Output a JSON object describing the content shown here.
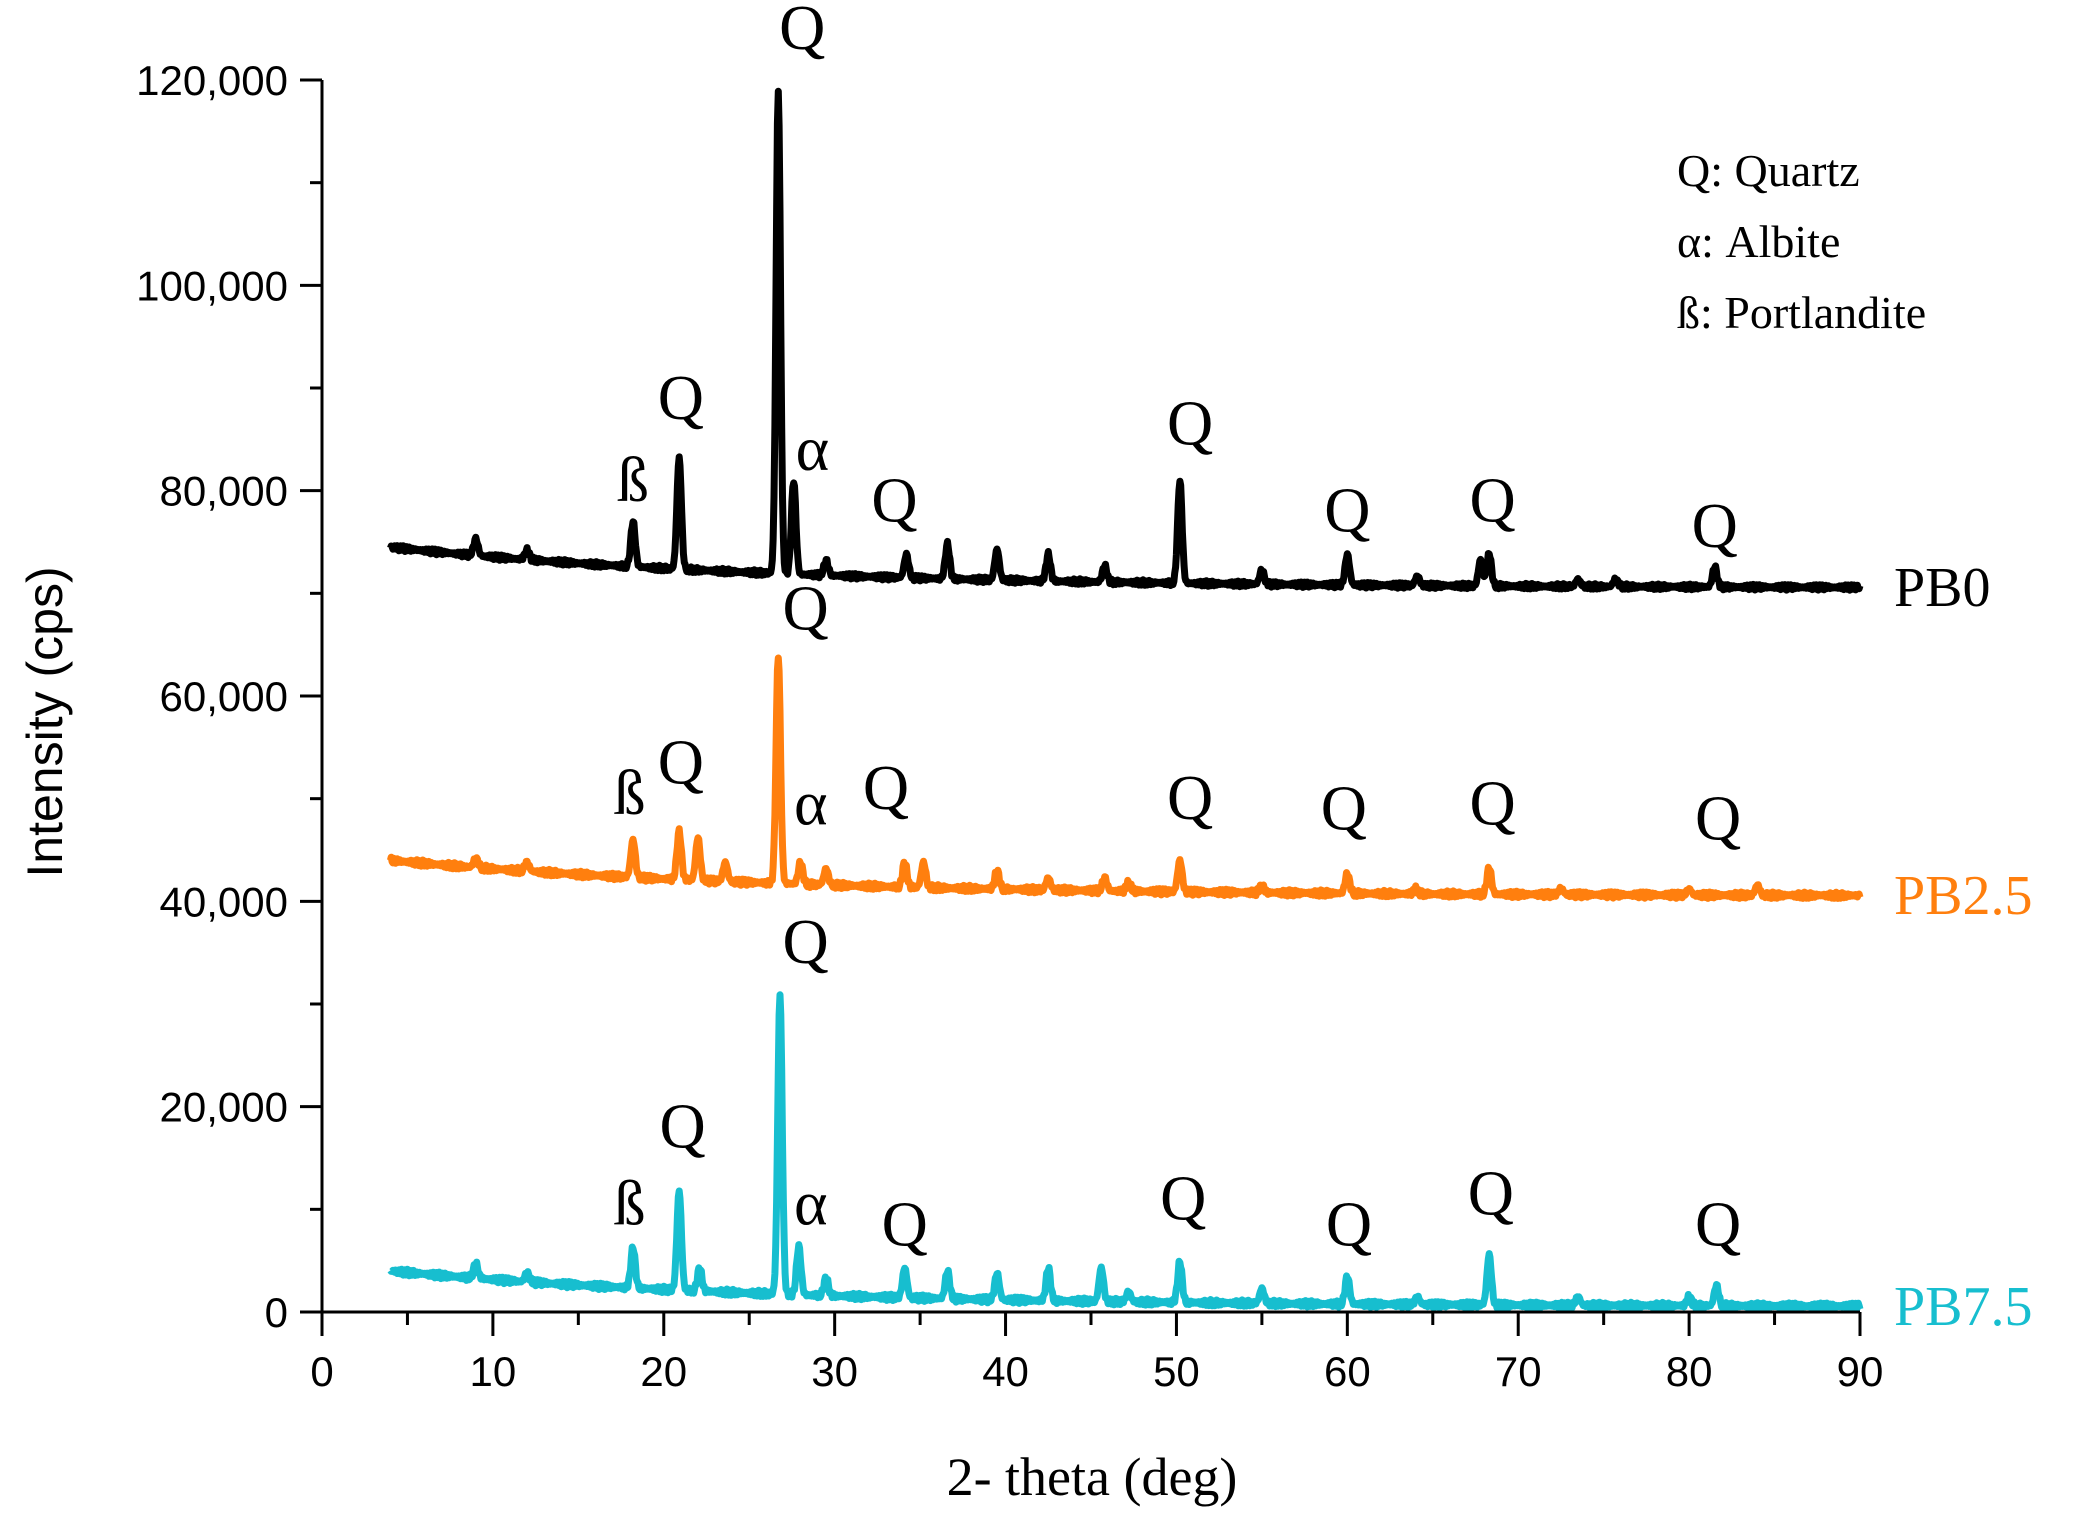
{
  "chart_data": {
    "type": "line",
    "xlabel": "2- theta (deg)",
    "ylabel": "Intensity (cps)",
    "xlim": [
      0,
      90
    ],
    "ylim": [
      0,
      120000
    ],
    "x_ticks": [
      "0",
      "10",
      "20",
      "30",
      "40",
      "50",
      "60",
      "70",
      "80",
      "90"
    ],
    "y_ticks": [
      "0",
      "20,000",
      "40,000",
      "60,000",
      "80,000",
      "100,000",
      "120,000"
    ],
    "grid": false,
    "legend_entries": [
      "Q: Quartz",
      "α: Albite",
      "ß: Portlandite"
    ],
    "series": [
      {
        "name": "PB0",
        "color": "#000000",
        "baseline_start": 74500,
        "baseline_end": 70500,
        "peaks": [
          {
            "x": 9.0,
            "y": 75300
          },
          {
            "x": 12.0,
            "y": 74200
          },
          {
            "x": 18.2,
            "y": 77000
          },
          {
            "x": 20.9,
            "y": 83200
          },
          {
            "x": 26.7,
            "y": 119000
          },
          {
            "x": 27.6,
            "y": 81000
          },
          {
            "x": 29.5,
            "y": 73200
          },
          {
            "x": 34.2,
            "y": 73800
          },
          {
            "x": 36.6,
            "y": 74800
          },
          {
            "x": 39.5,
            "y": 74300
          },
          {
            "x": 42.5,
            "y": 73800
          },
          {
            "x": 45.8,
            "y": 72700
          },
          {
            "x": 50.2,
            "y": 81000
          },
          {
            "x": 55.0,
            "y": 72300
          },
          {
            "x": 60.0,
            "y": 73800
          },
          {
            "x": 64.1,
            "y": 71700
          },
          {
            "x": 67.8,
            "y": 73300
          },
          {
            "x": 68.3,
            "y": 73900
          },
          {
            "x": 73.5,
            "y": 71400
          },
          {
            "x": 75.7,
            "y": 71400
          },
          {
            "x": 81.5,
            "y": 72600
          }
        ],
        "peak_labels": [
          {
            "text": "ß",
            "x": 18.2,
            "y": 79000
          },
          {
            "text": "Q",
            "x": 21.0,
            "y": 87000
          },
          {
            "text": "Q",
            "x": 28.1,
            "y": 123000
          },
          {
            "text": "α",
            "x": 28.7,
            "y": 82000
          },
          {
            "text": "Q",
            "x": 33.5,
            "y": 77000
          },
          {
            "text": "Q",
            "x": 50.8,
            "y": 84500
          },
          {
            "text": "Q",
            "x": 60.0,
            "y": 76000
          },
          {
            "text": "Q",
            "x": 68.5,
            "y": 77000
          },
          {
            "text": "Q",
            "x": 81.5,
            "y": 74500
          }
        ]
      },
      {
        "name": "PB2.5",
        "color": "#ff7f0e",
        "baseline_start": 44000,
        "baseline_end": 40500,
        "peaks": [
          {
            "x": 9.0,
            "y": 44200
          },
          {
            "x": 12.0,
            "y": 43800
          },
          {
            "x": 18.2,
            "y": 46000
          },
          {
            "x": 20.9,
            "y": 46800
          },
          {
            "x": 22.0,
            "y": 46200
          },
          {
            "x": 23.6,
            "y": 43800
          },
          {
            "x": 26.7,
            "y": 64000
          },
          {
            "x": 28.0,
            "y": 43800
          },
          {
            "x": 29.5,
            "y": 43200
          },
          {
            "x": 34.1,
            "y": 43800
          },
          {
            "x": 35.2,
            "y": 43800
          },
          {
            "x": 39.5,
            "y": 43000
          },
          {
            "x": 42.5,
            "y": 42300
          },
          {
            "x": 45.8,
            "y": 42300
          },
          {
            "x": 47.2,
            "y": 41800
          },
          {
            "x": 50.2,
            "y": 44000
          },
          {
            "x": 55.0,
            "y": 41500
          },
          {
            "x": 60.0,
            "y": 42700
          },
          {
            "x": 64.0,
            "y": 41200
          },
          {
            "x": 68.3,
            "y": 43300
          },
          {
            "x": 72.5,
            "y": 41300
          },
          {
            "x": 80.0,
            "y": 41200
          },
          {
            "x": 84.0,
            "y": 41600
          }
        ],
        "peak_labels": [
          {
            "text": "ß",
            "x": 18.0,
            "y": 48500
          },
          {
            "text": "Q",
            "x": 21.0,
            "y": 51500
          },
          {
            "text": "Q",
            "x": 28.3,
            "y": 66500
          },
          {
            "text": "α",
            "x": 28.6,
            "y": 47500
          },
          {
            "text": "Q",
            "x": 33.0,
            "y": 49000
          },
          {
            "text": "Q",
            "x": 50.8,
            "y": 48000
          },
          {
            "text": "Q",
            "x": 59.8,
            "y": 47000
          },
          {
            "text": "Q",
            "x": 68.5,
            "y": 47500
          },
          {
            "text": "Q",
            "x": 81.7,
            "y": 46000
          }
        ]
      },
      {
        "name": "PB7.5",
        "color": "#17becf",
        "baseline_start": 4000,
        "baseline_end": 500,
        "peaks": [
          {
            "x": 9.0,
            "y": 4700
          },
          {
            "x": 12.0,
            "y": 3800
          },
          {
            "x": 18.2,
            "y": 6300
          },
          {
            "x": 20.9,
            "y": 11800
          },
          {
            "x": 22.1,
            "y": 4300
          },
          {
            "x": 26.8,
            "y": 31000
          },
          {
            "x": 27.9,
            "y": 6400
          },
          {
            "x": 29.5,
            "y": 3300
          },
          {
            "x": 34.1,
            "y": 4300
          },
          {
            "x": 36.6,
            "y": 4000
          },
          {
            "x": 39.5,
            "y": 3800
          },
          {
            "x": 42.5,
            "y": 4300
          },
          {
            "x": 45.6,
            "y": 4300
          },
          {
            "x": 47.2,
            "y": 2000
          },
          {
            "x": 50.2,
            "y": 4900
          },
          {
            "x": 55.0,
            "y": 2300
          },
          {
            "x": 60.0,
            "y": 3500
          },
          {
            "x": 64.1,
            "y": 1500
          },
          {
            "x": 68.3,
            "y": 5600
          },
          {
            "x": 73.5,
            "y": 1500
          },
          {
            "x": 80.0,
            "y": 1500
          },
          {
            "x": 81.6,
            "y": 2600
          }
        ],
        "peak_labels": [
          {
            "text": "ß",
            "x": 18.0,
            "y": 8500
          },
          {
            "text": "Q",
            "x": 21.1,
            "y": 16000
          },
          {
            "text": "Q",
            "x": 28.3,
            "y": 34000
          },
          {
            "text": "α",
            "x": 28.6,
            "y": 8500
          },
          {
            "text": "Q",
            "x": 34.1,
            "y": 6500
          },
          {
            "text": "Q",
            "x": 50.4,
            "y": 9000
          },
          {
            "text": "Q",
            "x": 60.1,
            "y": 6500
          },
          {
            "text": "Q",
            "x": 68.4,
            "y": 9500
          },
          {
            "text": "Q",
            "x": 81.7,
            "y": 6500
          }
        ]
      }
    ]
  }
}
